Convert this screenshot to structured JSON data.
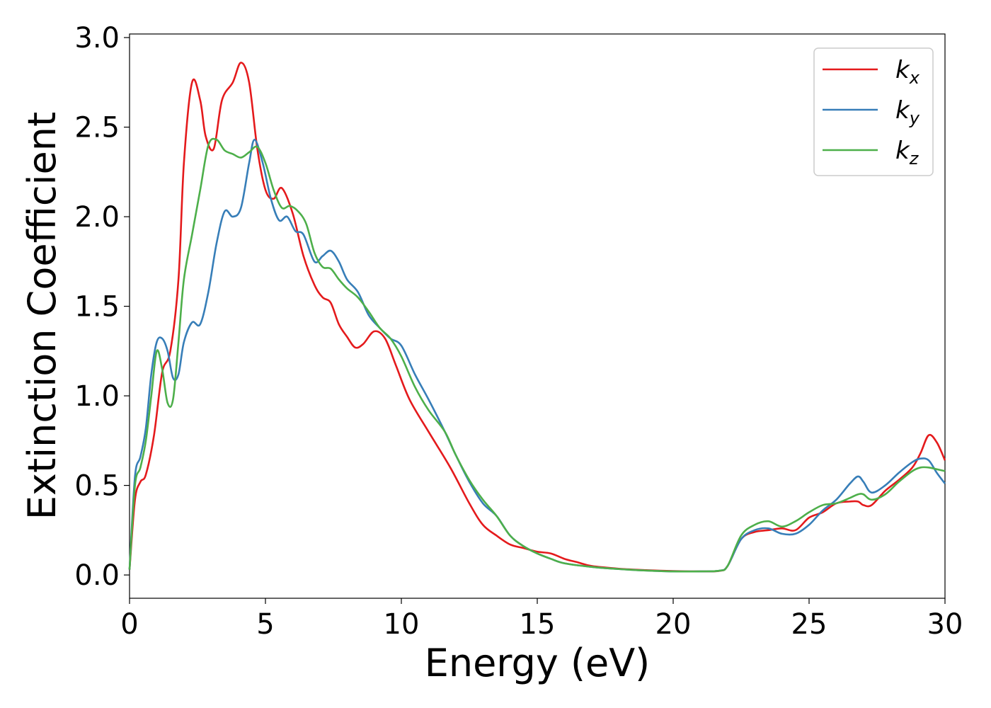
{
  "chart_data": {
    "type": "line",
    "title": "",
    "xlabel": "Energy (eV)",
    "ylabel": "Extinction Coefficient",
    "xlim": [
      0,
      30
    ],
    "ylim": [
      -0.13,
      3.02
    ],
    "xticks": [
      0,
      5,
      10,
      15,
      20,
      25,
      30
    ],
    "yticks": [
      0.0,
      0.5,
      1.0,
      1.5,
      2.0,
      2.5,
      3.0
    ],
    "xtick_labels": [
      "0",
      "5",
      "10",
      "15",
      "20",
      "25",
      "30"
    ],
    "ytick_labels": [
      "0.0",
      "0.5",
      "1.0",
      "1.5",
      "2.0",
      "2.5",
      "3.0"
    ],
    "grid": false,
    "legend_position": "top-right",
    "series": [
      {
        "name": "k",
        "subscript": "x",
        "color": "#e41a1c",
        "x": [
          0,
          0.2,
          0.4,
          0.6,
          0.9,
          1.2,
          1.5,
          1.8,
          2.0,
          2.3,
          2.6,
          2.8,
          3.1,
          3.4,
          3.8,
          4.1,
          4.4,
          4.7,
          5.0,
          5.3,
          5.6,
          6.0,
          6.4,
          6.8,
          7.1,
          7.4,
          7.7,
          8.0,
          8.3,
          8.6,
          9.0,
          9.4,
          9.8,
          10.3,
          11.0,
          11.8,
          12.5,
          13.0,
          13.5,
          14.0,
          14.5,
          15.0,
          15.5,
          16.0,
          16.5,
          17.0,
          18.0,
          19.0,
          20.0,
          21.0,
          21.7,
          22.0,
          22.5,
          23.0,
          23.5,
          24.0,
          24.5,
          25.0,
          25.5,
          26.0,
          26.5,
          26.8,
          27.0,
          27.3,
          27.8,
          28.3,
          28.8,
          29.1,
          29.4,
          29.7,
          30.0
        ],
        "y": [
          0.03,
          0.42,
          0.52,
          0.56,
          0.78,
          1.13,
          1.25,
          1.65,
          2.3,
          2.75,
          2.65,
          2.45,
          2.38,
          2.65,
          2.75,
          2.86,
          2.75,
          2.38,
          2.15,
          2.1,
          2.16,
          2.02,
          1.78,
          1.62,
          1.55,
          1.52,
          1.4,
          1.33,
          1.27,
          1.29,
          1.36,
          1.32,
          1.17,
          0.98,
          0.8,
          0.6,
          0.4,
          0.28,
          0.22,
          0.17,
          0.15,
          0.13,
          0.12,
          0.09,
          0.07,
          0.05,
          0.035,
          0.027,
          0.022,
          0.02,
          0.023,
          0.05,
          0.2,
          0.24,
          0.25,
          0.26,
          0.25,
          0.32,
          0.35,
          0.4,
          0.41,
          0.41,
          0.39,
          0.39,
          0.47,
          0.53,
          0.6,
          0.68,
          0.78,
          0.74,
          0.64
        ]
      },
      {
        "name": "k",
        "subscript": "y",
        "color": "#377eb8",
        "x": [
          0,
          0.2,
          0.4,
          0.6,
          0.8,
          1.0,
          1.2,
          1.4,
          1.6,
          1.8,
          2.0,
          2.3,
          2.6,
          2.9,
          3.2,
          3.5,
          3.8,
          4.1,
          4.4,
          4.6,
          4.9,
          5.2,
          5.5,
          5.8,
          6.1,
          6.4,
          6.8,
          7.1,
          7.4,
          7.7,
          8.0,
          8.4,
          8.8,
          9.2,
          9.6,
          10.0,
          10.5,
          11.0,
          11.6,
          12.0,
          12.5,
          13.0,
          13.5,
          14.0,
          14.5,
          15.0,
          15.5,
          16.0,
          17.0,
          18.0,
          19.0,
          20.0,
          21.0,
          21.7,
          22.0,
          22.5,
          23.0,
          23.5,
          24.0,
          24.5,
          25.0,
          25.5,
          26.0,
          26.5,
          26.8,
          27.0,
          27.3,
          27.8,
          28.3,
          28.8,
          29.1,
          29.4,
          29.7,
          30.0
        ],
        "y": [
          0.03,
          0.55,
          0.66,
          0.82,
          1.12,
          1.3,
          1.32,
          1.25,
          1.1,
          1.12,
          1.3,
          1.41,
          1.4,
          1.58,
          1.85,
          2.03,
          2.0,
          2.05,
          2.3,
          2.43,
          2.3,
          2.1,
          1.98,
          2.0,
          1.92,
          1.9,
          1.75,
          1.78,
          1.81,
          1.75,
          1.65,
          1.58,
          1.45,
          1.38,
          1.32,
          1.28,
          1.12,
          0.98,
          0.8,
          0.67,
          0.52,
          0.4,
          0.33,
          0.22,
          0.16,
          0.12,
          0.09,
          0.065,
          0.045,
          0.033,
          0.025,
          0.02,
          0.02,
          0.024,
          0.05,
          0.2,
          0.25,
          0.26,
          0.23,
          0.23,
          0.28,
          0.36,
          0.42,
          0.51,
          0.55,
          0.52,
          0.46,
          0.5,
          0.57,
          0.63,
          0.65,
          0.64,
          0.57,
          0.51
        ]
      },
      {
        "name": "k",
        "subscript": "z",
        "color": "#4daf4a",
        "x": [
          0,
          0.2,
          0.4,
          0.6,
          0.8,
          1.0,
          1.2,
          1.4,
          1.6,
          1.8,
          2.0,
          2.3,
          2.6,
          2.9,
          3.2,
          3.5,
          3.8,
          4.1,
          4.4,
          4.7,
          5.0,
          5.3,
          5.6,
          5.9,
          6.2,
          6.5,
          6.8,
          7.1,
          7.4,
          7.7,
          8.0,
          8.4,
          8.8,
          9.2,
          9.6,
          10.0,
          10.5,
          11.0,
          11.6,
          12.0,
          12.5,
          13.0,
          13.5,
          14.0,
          14.5,
          15.0,
          15.5,
          16.0,
          17.0,
          18.0,
          19.0,
          20.0,
          21.0,
          21.7,
          22.0,
          22.5,
          23.0,
          23.5,
          24.0,
          24.5,
          25.0,
          25.5,
          26.0,
          26.5,
          26.8,
          27.0,
          27.3,
          27.8,
          28.3,
          28.8,
          29.1,
          29.4,
          29.7,
          30.0
        ],
        "y": [
          0.03,
          0.5,
          0.6,
          0.75,
          1.0,
          1.25,
          1.15,
          0.96,
          0.98,
          1.3,
          1.65,
          1.9,
          2.15,
          2.4,
          2.43,
          2.37,
          2.35,
          2.33,
          2.36,
          2.39,
          2.3,
          2.15,
          2.05,
          2.06,
          2.03,
          1.96,
          1.8,
          1.72,
          1.71,
          1.65,
          1.6,
          1.55,
          1.47,
          1.38,
          1.32,
          1.22,
          1.05,
          0.92,
          0.8,
          0.67,
          0.53,
          0.42,
          0.33,
          0.22,
          0.16,
          0.12,
          0.09,
          0.065,
          0.045,
          0.033,
          0.025,
          0.02,
          0.02,
          0.024,
          0.05,
          0.22,
          0.28,
          0.3,
          0.27,
          0.3,
          0.35,
          0.39,
          0.4,
          0.43,
          0.45,
          0.45,
          0.42,
          0.45,
          0.52,
          0.58,
          0.6,
          0.6,
          0.59,
          0.58
        ]
      }
    ]
  }
}
